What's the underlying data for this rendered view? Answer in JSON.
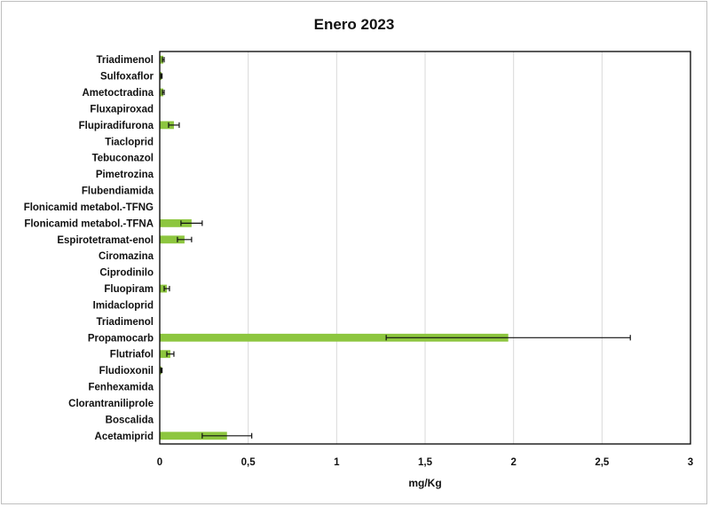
{
  "chart_data": {
    "type": "bar",
    "orientation": "horizontal",
    "title": "Enero 2023",
    "xlabel": "mg/Kg",
    "ylabel": "",
    "xlim": [
      0,
      3
    ],
    "xticks": [
      "0",
      "0,5",
      "1",
      "1,5",
      "2",
      "2,5",
      "3"
    ],
    "tick_values": [
      0,
      0.5,
      1,
      1.5,
      2,
      2.5,
      3
    ],
    "grid": "vertical",
    "legend": "none",
    "bar_color": "#8dc63f",
    "error_bar_color": "#111111",
    "categories": [
      "Triadimenol",
      "Sulfoxaflor",
      "Ametoctradina",
      "Fluxapiroxad",
      "Flupiradifurona",
      "Tiacloprid",
      "Tebuconazol",
      "Pimetrozina",
      "Flubendiamida",
      "Flonicamid metabol.-TFNG",
      "Flonicamid metabol.-TFNA",
      "Espirotetramat-enol",
      "Ciromazina",
      "Ciprodinilo",
      "Fluopiram",
      "Imidacloprid",
      "Triadimenol",
      "Propamocarb",
      "Flutriafol",
      "Fludioxonil",
      "Fenhexamida",
      "Clorantraniliprole",
      "Boscalida",
      "Acetamiprid"
    ],
    "values": [
      0.02,
      0.01,
      0.02,
      0,
      0.08,
      0,
      0,
      0,
      0,
      0,
      0.18,
      0.14,
      0,
      0,
      0.04,
      0,
      0,
      1.97,
      0.06,
      0.01,
      0,
      0,
      0,
      0.38
    ],
    "errors": [
      0.005,
      0.003,
      0.005,
      0,
      0.03,
      0,
      0,
      0,
      0,
      0,
      0.06,
      0.04,
      0,
      0,
      0.015,
      0,
      0,
      0.69,
      0.02,
      0.003,
      0,
      0,
      0,
      0.14
    ]
  }
}
